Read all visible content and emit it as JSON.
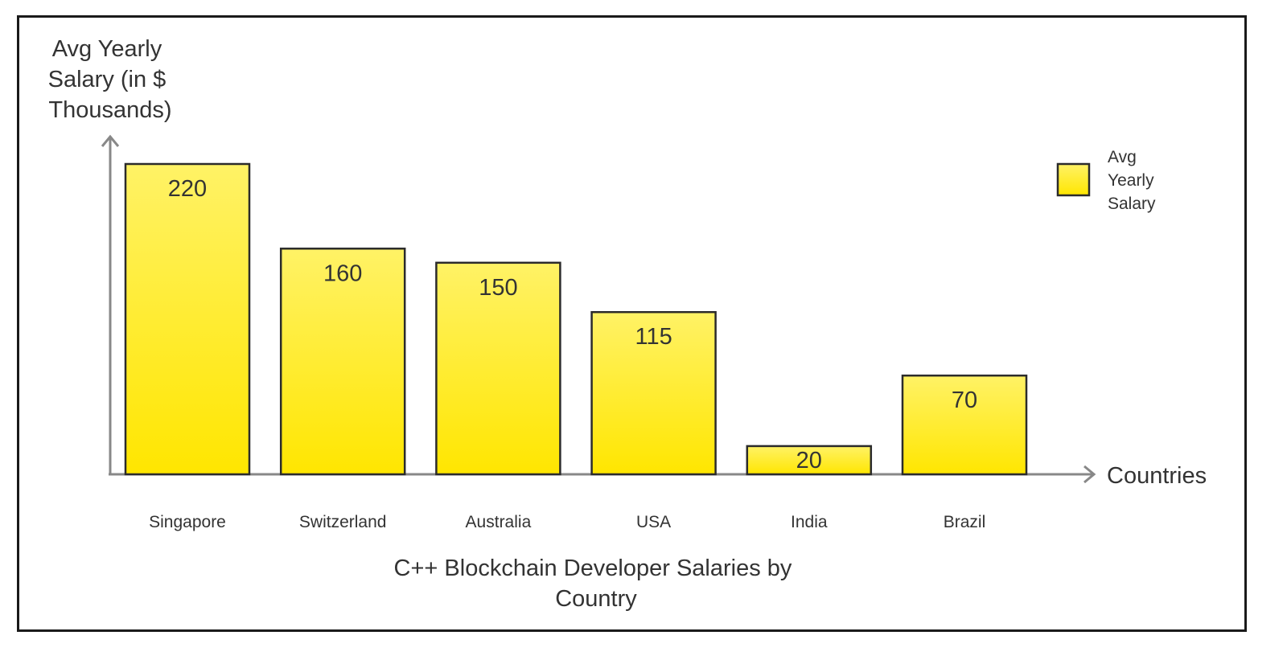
{
  "chart_data": {
    "type": "bar",
    "title": "C++ Blockchain Developer Salaries by Country",
    "title_lines": [
      "C++ Blockchain Developer Salaries by",
      "Country"
    ],
    "xlabel": "Countries",
    "ylabel": "Avg Yearly Salary (in $ Thousands)",
    "ylabel_lines": [
      "Avg Yearly",
      "Salary (in $",
      "Thousands)"
    ],
    "categories": [
      "Singapore",
      "Switzerland",
      "Australia",
      "USA",
      "India",
      "Brazil"
    ],
    "series": [
      {
        "name": "Avg Yearly Salary",
        "values": [
          220,
          160,
          150,
          115,
          20,
          70
        ]
      }
    ],
    "value_labels": [
      "220",
      "160",
      "150",
      "115",
      "20",
      "70"
    ],
    "legend_lines": [
      "Avg",
      "Yearly",
      "Salary"
    ],
    "legend_position": "top-right",
    "ylim": [
      0,
      220
    ],
    "grid": false,
    "colors": {
      "bar_top": "#fff266",
      "bar_bottom": "#ffe600",
      "bar_stroke": "#2b2b2b",
      "axis": "#888888",
      "text": "#333333"
    }
  }
}
